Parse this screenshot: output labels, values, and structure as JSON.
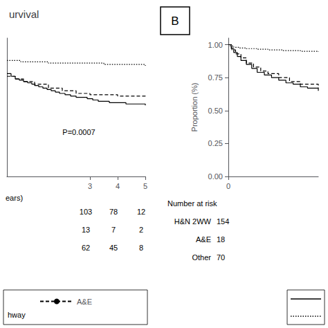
{
  "chart_data": [
    {
      "type": "step",
      "title": "urvival",
      "xlabel": "ears)",
      "annotation": "P=0.0007",
      "legend": "lower left",
      "legend_note": "hway",
      "xlim": [
        0,
        5.0
      ],
      "xticks": [
        3,
        4,
        5
      ],
      "ylim": [
        0.0,
        1.05
      ],
      "yticks": [],
      "tick_labels": "x",
      "grid": false,
      "series": [
        {
          "color": "#000000",
          "line_style": "solid",
          "x": [
            0,
            0.15,
            0.3,
            0.45,
            0.6,
            0.75,
            0.9,
            1.0,
            1.15,
            1.3,
            1.45,
            1.6,
            1.75,
            1.9,
            2.1,
            2.3,
            2.5,
            2.7,
            2.9,
            3.1,
            3.3,
            3.5,
            3.7,
            3.9,
            4.1,
            4.3,
            4.5,
            4.7,
            5.0
          ],
          "values": [
            0.78,
            0.76,
            0.74,
            0.73,
            0.72,
            0.71,
            0.7,
            0.69,
            0.68,
            0.67,
            0.66,
            0.65,
            0.64,
            0.63,
            0.62,
            0.61,
            0.6,
            0.6,
            0.59,
            0.58,
            0.57,
            0.57,
            0.56,
            0.56,
            0.56,
            0.55,
            0.55,
            0.55,
            0.54
          ]
        },
        {
          "name": "A&E",
          "color": "#000000",
          "line_style": "dashed",
          "x": [
            0,
            0.3,
            0.6,
            1.0,
            1.5,
            2.0,
            2.5,
            3.0,
            3.5,
            4.0,
            4.5,
            5.0
          ],
          "values": [
            0.76,
            0.74,
            0.72,
            0.7,
            0.67,
            0.65,
            0.63,
            0.62,
            0.62,
            0.61,
            0.61,
            0.6
          ]
        },
        {
          "color": "#000000",
          "line_style": "dotted",
          "x": [
            0,
            0.5,
            1.0,
            1.5,
            2.0,
            2.5,
            3.0,
            3.5,
            4.0,
            4.5,
            5.0
          ],
          "values": [
            0.88,
            0.87,
            0.87,
            0.86,
            0.86,
            0.86,
            0.86,
            0.85,
            0.85,
            0.85,
            0.84
          ]
        }
      ],
      "number_at_risk": [
        [
          103,
          78,
          12
        ],
        [
          13,
          7,
          2
        ],
        [
          62,
          45,
          8
        ]
      ]
    },
    {
      "type": "step",
      "panel_label": "B",
      "ylabel": "Proportion (%)",
      "xlim": [
        0,
        2.5
      ],
      "xticks": [
        0
      ],
      "ylim": [
        0.0,
        1.05
      ],
      "yticks": [
        {
          "value": 0.0,
          "label": "0.00"
        },
        {
          "value": 0.25,
          "label": "0.25"
        },
        {
          "value": 0.5,
          "label": "0.50"
        },
        {
          "value": 0.75,
          "label": "0.75"
        },
        {
          "value": 1.0,
          "label": "1.00"
        }
      ],
      "grid": false,
      "series": [
        {
          "color": "#000000",
          "line_style": "solid",
          "x": [
            0,
            0.08,
            0.15,
            0.25,
            0.35,
            0.5,
            0.65,
            0.8,
            1.0,
            1.2,
            1.4,
            1.6,
            1.8,
            2.0,
            2.2,
            2.5
          ],
          "values": [
            1.0,
            0.97,
            0.94,
            0.91,
            0.88,
            0.85,
            0.82,
            0.79,
            0.77,
            0.75,
            0.73,
            0.71,
            0.7,
            0.68,
            0.67,
            0.65
          ]
        },
        {
          "color": "#000000",
          "line_style": "dashed",
          "x": [
            0,
            0.1,
            0.2,
            0.35,
            0.5,
            0.7,
            0.9,
            1.1,
            1.4,
            1.7,
            2.0,
            2.5
          ],
          "values": [
            1.0,
            0.96,
            0.93,
            0.9,
            0.86,
            0.83,
            0.8,
            0.78,
            0.75,
            0.72,
            0.7,
            0.67
          ]
        },
        {
          "color": "#000000",
          "line_style": "dotted",
          "x": [
            0,
            0.05,
            0.15,
            0.3,
            0.5,
            0.8,
            1.1,
            1.5,
            2.0,
            2.5
          ],
          "values": [
            1.0,
            0.99,
            0.98,
            0.975,
            0.97,
            0.965,
            0.96,
            0.955,
            0.95,
            0.945
          ]
        }
      ],
      "number_at_risk_title": "Number at risk",
      "number_at_risk": [
        {
          "label": "H&N 2WW",
          "count": 154
        },
        {
          "label": "A&E",
          "count": 18
        },
        {
          "label": "Other",
          "count": 70
        }
      ]
    }
  ]
}
